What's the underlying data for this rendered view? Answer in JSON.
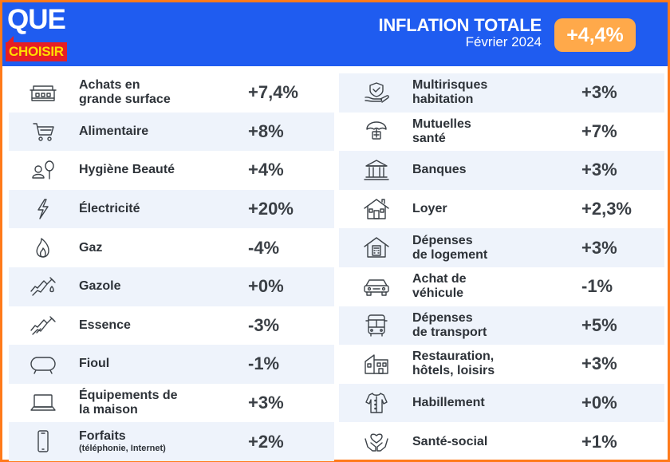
{
  "header": {
    "logo_top": "QUE",
    "logo_bottom": "CHOISIR",
    "title": "INFLATION TOTALE",
    "subtitle": "Février 2024",
    "total": "+4,4%",
    "colors": {
      "background": "#1f5cf0",
      "badge": "#ffa94a",
      "logo_red": "#e51e25",
      "logo_yellow": "#ffdd00",
      "frame": "#ff7a1a"
    }
  },
  "left_rows": [
    {
      "icon": "supermarket-icon",
      "line1": "Achats en",
      "line2": "grande surface",
      "note": "",
      "value": "+7,4%"
    },
    {
      "icon": "shopping-cart-icon",
      "line1": "Alimentaire",
      "line2": "",
      "note": "",
      "value": "+8%"
    },
    {
      "icon": "beauty-icon",
      "line1": "Hygiène Beauté",
      "line2": "",
      "note": "",
      "value": "+4%"
    },
    {
      "icon": "lightning-icon",
      "line1": "Électricité",
      "line2": "",
      "note": "",
      "value": "+20%"
    },
    {
      "icon": "flame-icon",
      "line1": "Gaz",
      "line2": "",
      "note": "",
      "value": "-4%"
    },
    {
      "icon": "fuel-nozzle-icon",
      "line1": "Gazole",
      "line2": "",
      "note": "",
      "value": "+0%"
    },
    {
      "icon": "fuel-nozzle-icon",
      "line1": "Essence",
      "line2": "",
      "note": "",
      "value": "-3%"
    },
    {
      "icon": "oil-tank-icon",
      "line1": "Fioul",
      "line2": "",
      "note": "",
      "value": "-1%"
    },
    {
      "icon": "laptop-icon",
      "line1": "Équipements de",
      "line2": "la maison",
      "note": "",
      "value": "+3%"
    },
    {
      "icon": "smartphone-icon",
      "line1": "Forfaits",
      "line2": "",
      "note": "(téléphonie, Internet)",
      "value": "+2%"
    }
  ],
  "right_rows": [
    {
      "icon": "home-insurance-icon",
      "line1": "Multirisques",
      "line2": "habitation",
      "note": "",
      "value": "+3%"
    },
    {
      "icon": "health-umbrella-icon",
      "line1": "Mutuelles",
      "line2": "santé",
      "note": "",
      "value": "+7%"
    },
    {
      "icon": "bank-icon",
      "line1": "Banques",
      "line2": "",
      "note": "",
      "value": "+3%"
    },
    {
      "icon": "house-icon",
      "line1": "Loyer",
      "line2": "",
      "note": "",
      "value": "+2,3%"
    },
    {
      "icon": "house-calculator-icon",
      "line1": "Dépenses",
      "line2": "de logement",
      "note": "",
      "value": "+3%"
    },
    {
      "icon": "car-icon",
      "line1": "Achat de",
      "line2": "véhicule",
      "note": "",
      "value": "-1%"
    },
    {
      "icon": "bus-icon",
      "line1": "Dépenses",
      "line2": "de transport",
      "note": "",
      "value": "+5%"
    },
    {
      "icon": "hotel-icon",
      "line1": "Restauration,",
      "line2": "hôtels, loisirs",
      "note": "",
      "value": "+3%"
    },
    {
      "icon": "shirt-icon",
      "line1": "Habillement",
      "line2": "",
      "note": "",
      "value": "+0%"
    },
    {
      "icon": "heart-hands-icon",
      "line1": "Santé-social",
      "line2": "",
      "note": "",
      "value": "+1%"
    }
  ]
}
